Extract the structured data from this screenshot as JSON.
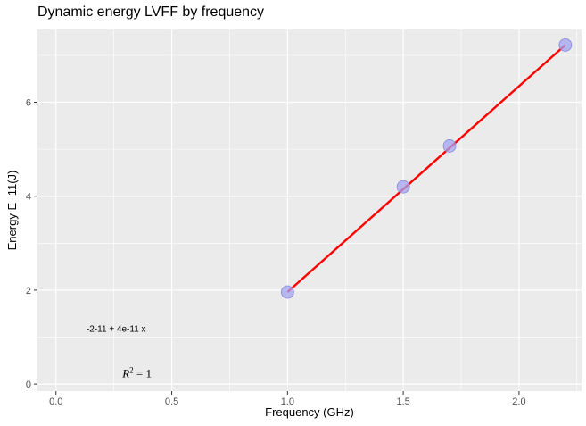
{
  "chart_data": {
    "type": "scatter",
    "title": "Dynamic energy LVFF by frequency",
    "xlabel": "Frequency (GHz)",
    "ylabel": "Energy E−11(J)",
    "xlim": [
      -0.08,
      2.27
    ],
    "ylim": [
      -0.15,
      7.55
    ],
    "xticks": [
      0.0,
      0.5,
      1.0,
      1.5,
      2.0
    ],
    "xtick_labels": [
      "0.0",
      "0.5",
      "1.0",
      "1.5",
      "2.0"
    ],
    "yticks": [
      0,
      2,
      4,
      6
    ],
    "ytick_labels": [
      "0",
      "2",
      "4",
      "6"
    ],
    "grid": true,
    "series": [
      {
        "points": [
          {
            "x": 1.0,
            "y": 1.96
          },
          {
            "x": 1.5,
            "y": 4.2
          },
          {
            "x": 1.7,
            "y": 5.07
          },
          {
            "x": 2.2,
            "y": 7.22
          }
        ],
        "color": "#a3a3f0"
      }
    ],
    "fit_line": {
      "x": [
        1.0,
        2.2
      ],
      "y": [
        1.96,
        7.22
      ],
      "color": "#ff0000"
    },
    "annotations": {
      "equation": "-2-11 + 4e-11 x",
      "equation_pos": {
        "x": 0.26,
        "y": 1.17
      },
      "r2_text": "= 1",
      "r2_pos": {
        "x": 0.35,
        "y": 0.22
      }
    },
    "colors": {
      "panel_bg": "#ebebeb",
      "grid_major": "#ffffff"
    }
  }
}
